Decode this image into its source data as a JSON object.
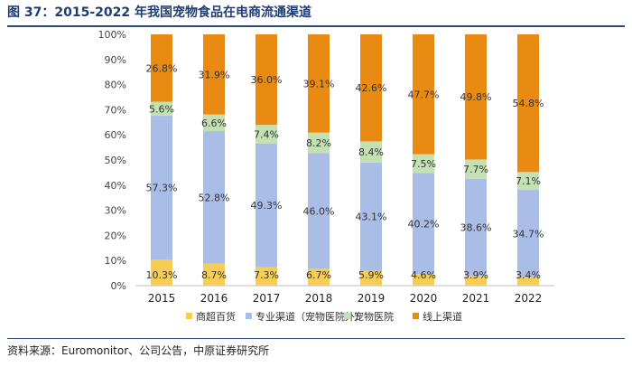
{
  "header": {
    "title": "图 37：2015-2022 年我国宠物食品在电商流通渠道"
  },
  "footer": {
    "source": "资料来源：Euromonitor、公司公告，中原证券研究所"
  },
  "chart_data": {
    "type": "bar",
    "stacked": true,
    "percent": true,
    "categories": [
      "2015",
      "2016",
      "2017",
      "2018",
      "2019",
      "2020",
      "2021",
      "2022"
    ],
    "series": [
      {
        "name": "商超百货",
        "color": "#f7cd55",
        "values": [
          10.3,
          8.7,
          7.3,
          6.7,
          5.9,
          4.6,
          3.9,
          3.4
        ]
      },
      {
        "name": "专业渠道（宠物医院外）",
        "color": "#a9bde6",
        "values": [
          57.3,
          52.8,
          49.3,
          46.0,
          43.1,
          40.2,
          38.6,
          34.7
        ]
      },
      {
        "name": "宠物医院",
        "color": "#c4e1b4",
        "values": [
          5.6,
          6.6,
          7.4,
          8.2,
          8.4,
          7.5,
          7.7,
          7.1
        ]
      },
      {
        "name": "线上渠道",
        "color": "#e98a12",
        "values": [
          26.8,
          31.9,
          36.0,
          39.1,
          42.6,
          47.7,
          49.8,
          54.8
        ]
      }
    ],
    "data_label_suffix": "%",
    "yticks": [
      "0%",
      "10%",
      "20%",
      "30%",
      "40%",
      "50%",
      "60%",
      "70%",
      "80%",
      "90%",
      "100%"
    ],
    "ylim": [
      0,
      100
    ],
    "legend_position": "bottom"
  }
}
